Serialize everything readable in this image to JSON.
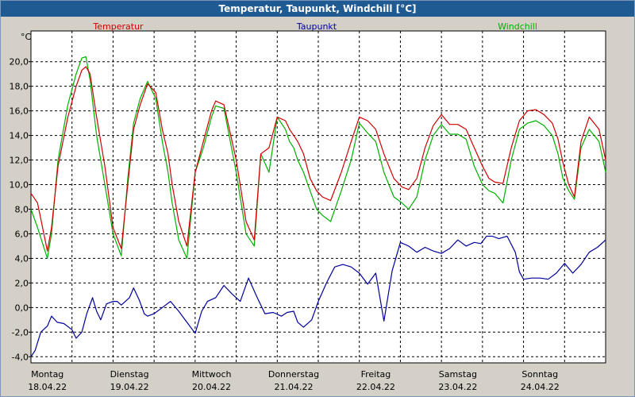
{
  "window": {
    "title": "Temperatur, Taupunkt, Windchill [°C]"
  },
  "colors": {
    "plot_bg": "#ffffff",
    "frame_bg": "#d4d0c8",
    "title_bg": "#1f5a92",
    "grid": "#000000"
  },
  "chart_data": {
    "type": "line",
    "title": "Temperatur, Taupunkt, Windchill [°C]",
    "ylabel": "°C",
    "ylim": [
      -4.5,
      22.5
    ],
    "yticks": [
      -4.0,
      -2.0,
      0.0,
      2.0,
      4.0,
      6.0,
      8.0,
      10.0,
      12.0,
      14.0,
      16.0,
      18.0,
      20.0
    ],
    "ytick_labels": [
      "-4,0",
      "-2,0",
      "0,0",
      "2,0",
      "4,0",
      "6,0",
      "8,0",
      "10,0",
      "12,0",
      "14,0",
      "16,0",
      "18,0",
      "20,0"
    ],
    "xlim": [
      0,
      7
    ],
    "xticks": [
      0,
      0.5,
      1,
      1.5,
      2,
      2.5,
      3,
      3.5,
      4,
      4.5,
      5,
      5.5,
      6,
      6.5,
      7
    ],
    "day_labels": [
      {
        "day": "Montag",
        "date": "18.04.22"
      },
      {
        "day": "Dienstag",
        "date": "19.04.22"
      },
      {
        "day": "Mittwoch",
        "date": "20.04.22"
      },
      {
        "day": "Donnerstag",
        "date": "21.04.22"
      },
      {
        "day": "Freitag",
        "date": "22.04.22"
      },
      {
        "day": "Samstag",
        "date": "23.04.22"
      },
      {
        "day": "Sonntag",
        "date": "24.04.22"
      }
    ],
    "grid": true,
    "series": [
      {
        "name": "Temperatur",
        "color": "#d00000",
        "x": [
          0,
          0.08,
          0.2,
          0.25,
          0.33,
          0.45,
          0.55,
          0.62,
          0.67,
          0.72,
          0.8,
          0.9,
          1.0,
          1.1,
          1.18,
          1.25,
          1.33,
          1.42,
          1.52,
          1.6,
          1.67,
          1.72,
          1.8,
          1.9,
          2.0,
          2.1,
          2.2,
          2.25,
          2.35,
          2.5,
          2.62,
          2.72,
          2.8,
          2.9,
          3.0,
          3.1,
          3.15,
          3.2,
          3.25,
          3.32,
          3.4,
          3.48,
          3.55,
          3.65,
          3.78,
          3.9,
          4.0,
          4.1,
          4.2,
          4.3,
          4.42,
          4.52,
          4.6,
          4.7,
          4.8,
          4.9,
          5.0,
          5.1,
          5.2,
          5.3,
          5.4,
          5.5,
          5.58,
          5.65,
          5.75,
          5.85,
          5.95,
          6.05,
          6.15,
          6.25,
          6.35,
          6.42,
          6.48,
          6.55,
          6.62,
          6.7,
          6.8,
          6.92,
          7.0
        ],
        "y": [
          9.3,
          8.5,
          4.6,
          6.5,
          11.5,
          15.5,
          18.0,
          19.3,
          19.6,
          19.0,
          15.5,
          11.5,
          6.5,
          4.8,
          10.0,
          14.5,
          16.5,
          18.2,
          17.5,
          14.5,
          12.5,
          10.0,
          7.0,
          5.0,
          11.0,
          13.5,
          16.0,
          16.8,
          16.5,
          12.0,
          7.0,
          5.5,
          12.5,
          13.0,
          15.5,
          15.2,
          14.5,
          14.0,
          13.5,
          12.5,
          10.5,
          9.5,
          9.0,
          8.7,
          11.0,
          13.5,
          15.5,
          15.2,
          14.5,
          12.5,
          10.5,
          9.8,
          9.6,
          10.5,
          13.0,
          14.8,
          15.7,
          14.9,
          14.9,
          14.5,
          13.0,
          11.5,
          10.5,
          10.2,
          10.1,
          13.0,
          15.2,
          16.0,
          16.1,
          15.7,
          15.0,
          13.7,
          11.8,
          10.0,
          9.0,
          13.5,
          15.5,
          14.5,
          12.0
        ]
      },
      {
        "name": "Taupunkt",
        "color": "#00009c",
        "x": [
          0,
          0.05,
          0.12,
          0.2,
          0.25,
          0.32,
          0.4,
          0.5,
          0.55,
          0.62,
          0.68,
          0.75,
          0.8,
          0.85,
          0.92,
          1.0,
          1.05,
          1.1,
          1.2,
          1.25,
          1.32,
          1.38,
          1.42,
          1.5,
          1.6,
          1.7,
          1.8,
          1.9,
          2.0,
          2.08,
          2.15,
          2.25,
          2.35,
          2.45,
          2.55,
          2.65,
          2.75,
          2.85,
          2.95,
          3.05,
          3.12,
          3.2,
          3.25,
          3.32,
          3.42,
          3.5,
          3.6,
          3.7,
          3.8,
          3.9,
          4.0,
          4.1,
          4.2,
          4.3,
          4.4,
          4.5,
          4.6,
          4.7,
          4.8,
          4.9,
          5.0,
          5.1,
          5.2,
          5.3,
          5.4,
          5.48,
          5.55,
          5.62,
          5.7,
          5.8,
          5.9,
          5.95,
          6.0,
          6.1,
          6.2,
          6.3,
          6.4,
          6.5,
          6.6,
          6.7,
          6.8,
          6.9,
          7.0
        ],
        "y": [
          -4.0,
          -3.5,
          -2.0,
          -1.5,
          -0.7,
          -1.2,
          -1.3,
          -1.8,
          -2.5,
          -2.0,
          -0.5,
          0.8,
          -0.3,
          -1.0,
          0.3,
          0.5,
          0.5,
          0.2,
          0.8,
          1.6,
          0.6,
          -0.5,
          -0.7,
          -0.5,
          0.0,
          0.5,
          -0.3,
          -1.2,
          -2.1,
          -0.3,
          0.5,
          0.8,
          1.8,
          1.1,
          0.5,
          2.4,
          0.9,
          -0.5,
          -0.4,
          -0.7,
          -0.4,
          -0.3,
          -1.2,
          -1.6,
          -1.0,
          0.5,
          2.0,
          3.3,
          3.5,
          3.3,
          2.8,
          1.9,
          2.8,
          -1.1,
          3.0,
          5.3,
          5.0,
          4.5,
          4.9,
          4.6,
          4.4,
          4.8,
          5.5,
          5.0,
          5.3,
          5.2,
          5.8,
          5.8,
          5.6,
          5.8,
          4.5,
          2.9,
          2.3,
          2.4,
          2.4,
          2.3,
          2.8,
          3.6,
          2.8,
          3.5,
          4.5,
          4.9,
          5.5
        ]
      },
      {
        "name": "Windchill",
        "color": "#00b000",
        "x": [
          0,
          0.08,
          0.2,
          0.25,
          0.33,
          0.45,
          0.55,
          0.62,
          0.67,
          0.72,
          0.8,
          0.9,
          1.0,
          1.1,
          1.18,
          1.25,
          1.33,
          1.42,
          1.52,
          1.6,
          1.67,
          1.72,
          1.8,
          1.9,
          2.0,
          2.1,
          2.2,
          2.25,
          2.35,
          2.5,
          2.62,
          2.72,
          2.8,
          2.9,
          3.0,
          3.1,
          3.15,
          3.2,
          3.25,
          3.32,
          3.4,
          3.48,
          3.55,
          3.65,
          3.78,
          3.9,
          4.0,
          4.1,
          4.2,
          4.3,
          4.42,
          4.52,
          4.6,
          4.7,
          4.8,
          4.9,
          5.0,
          5.1,
          5.2,
          5.3,
          5.4,
          5.5,
          5.58,
          5.65,
          5.75,
          5.85,
          5.95,
          6.05,
          6.15,
          6.25,
          6.35,
          6.42,
          6.48,
          6.55,
          6.62,
          6.7,
          6.8,
          6.92,
          7.0
        ],
        "y": [
          8.0,
          6.5,
          4.0,
          6.0,
          12.0,
          16.5,
          19.0,
          20.3,
          20.4,
          18.5,
          14.0,
          10.0,
          6.0,
          4.2,
          10.5,
          15.0,
          17.0,
          18.4,
          17.0,
          13.5,
          11.0,
          8.5,
          5.5,
          4.0,
          11.0,
          13.0,
          15.5,
          16.4,
          16.2,
          11.0,
          6.0,
          5.0,
          12.5,
          11.0,
          15.5,
          14.5,
          13.5,
          13.0,
          12.0,
          11.0,
          9.5,
          8.0,
          7.5,
          7.0,
          9.5,
          12.0,
          15.0,
          14.2,
          13.5,
          11.0,
          9.0,
          8.5,
          8.0,
          9.0,
          12.0,
          14.0,
          14.9,
          14.1,
          14.1,
          13.7,
          11.5,
          10.0,
          9.5,
          9.3,
          8.5,
          12.0,
          14.5,
          15.0,
          15.2,
          14.8,
          14.0,
          12.5,
          10.5,
          9.5,
          8.8,
          13.0,
          14.5,
          13.5,
          11.0
        ]
      }
    ]
  }
}
